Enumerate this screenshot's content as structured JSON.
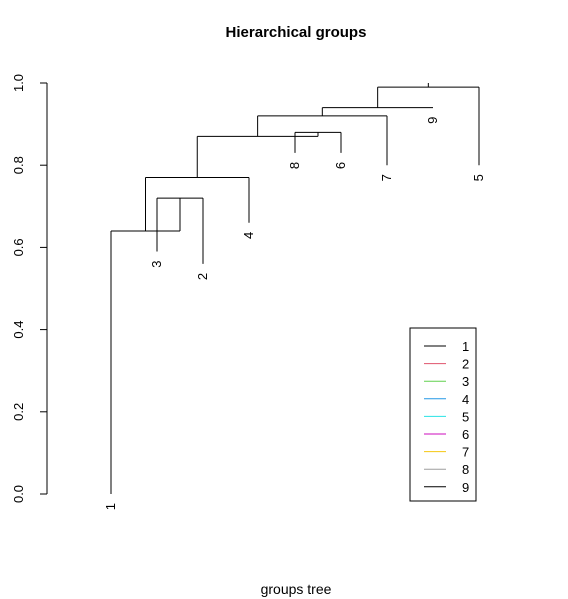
{
  "chart_data": {
    "type": "dendrogram",
    "title": "Hierarchical groups",
    "xlabel": "groups tree",
    "ylabel": "",
    "ylim": [
      0,
      1
    ],
    "yticks": [
      "0.0",
      "0.2",
      "0.4",
      "0.6",
      "0.8",
      "1.0"
    ],
    "leaf_order": [
      "1",
      "3",
      "2",
      "4",
      "8",
      "6",
      "7",
      "9",
      "5"
    ],
    "leaf_heights": [
      0.0,
      0.59,
      0.56,
      0.66,
      0.83,
      0.83,
      0.8,
      0.94,
      0.8
    ],
    "merges": [
      {
        "left": "3",
        "right": "2",
        "height": 0.72
      },
      {
        "left": "1",
        "right": "3+2",
        "height": 0.64
      },
      {
        "left": "1,3,2",
        "right": "4",
        "height": 0.77
      },
      {
        "left": "8",
        "right": "6",
        "height": 0.88
      },
      {
        "left": "1,3,2,4",
        "right": "8,6",
        "height": 0.87
      },
      {
        "left": "1,3,2,4,8,6",
        "right": "7",
        "height": 0.92
      },
      {
        "left": "1,3,2,4,8,6,7",
        "right": "9",
        "height": 0.94
      },
      {
        "left": "1,3,2,4,8,6,7,9",
        "right": "5",
        "height": 0.99
      },
      {
        "left": "root",
        "right": "",
        "height": 1.0
      }
    ],
    "legend": {
      "position": "bottom-right",
      "entries": [
        {
          "label": "1",
          "color": "#000000"
        },
        {
          "label": "2",
          "color": "#DF536B"
        },
        {
          "label": "3",
          "color": "#61D04F"
        },
        {
          "label": "4",
          "color": "#2297E6"
        },
        {
          "label": "5",
          "color": "#28E2E5"
        },
        {
          "label": "6",
          "color": "#CD0BBC"
        },
        {
          "label": "7",
          "color": "#F5C710"
        },
        {
          "label": "8",
          "color": "#9E9E9E"
        },
        {
          "label": "9",
          "color": "#000000"
        }
      ]
    }
  }
}
